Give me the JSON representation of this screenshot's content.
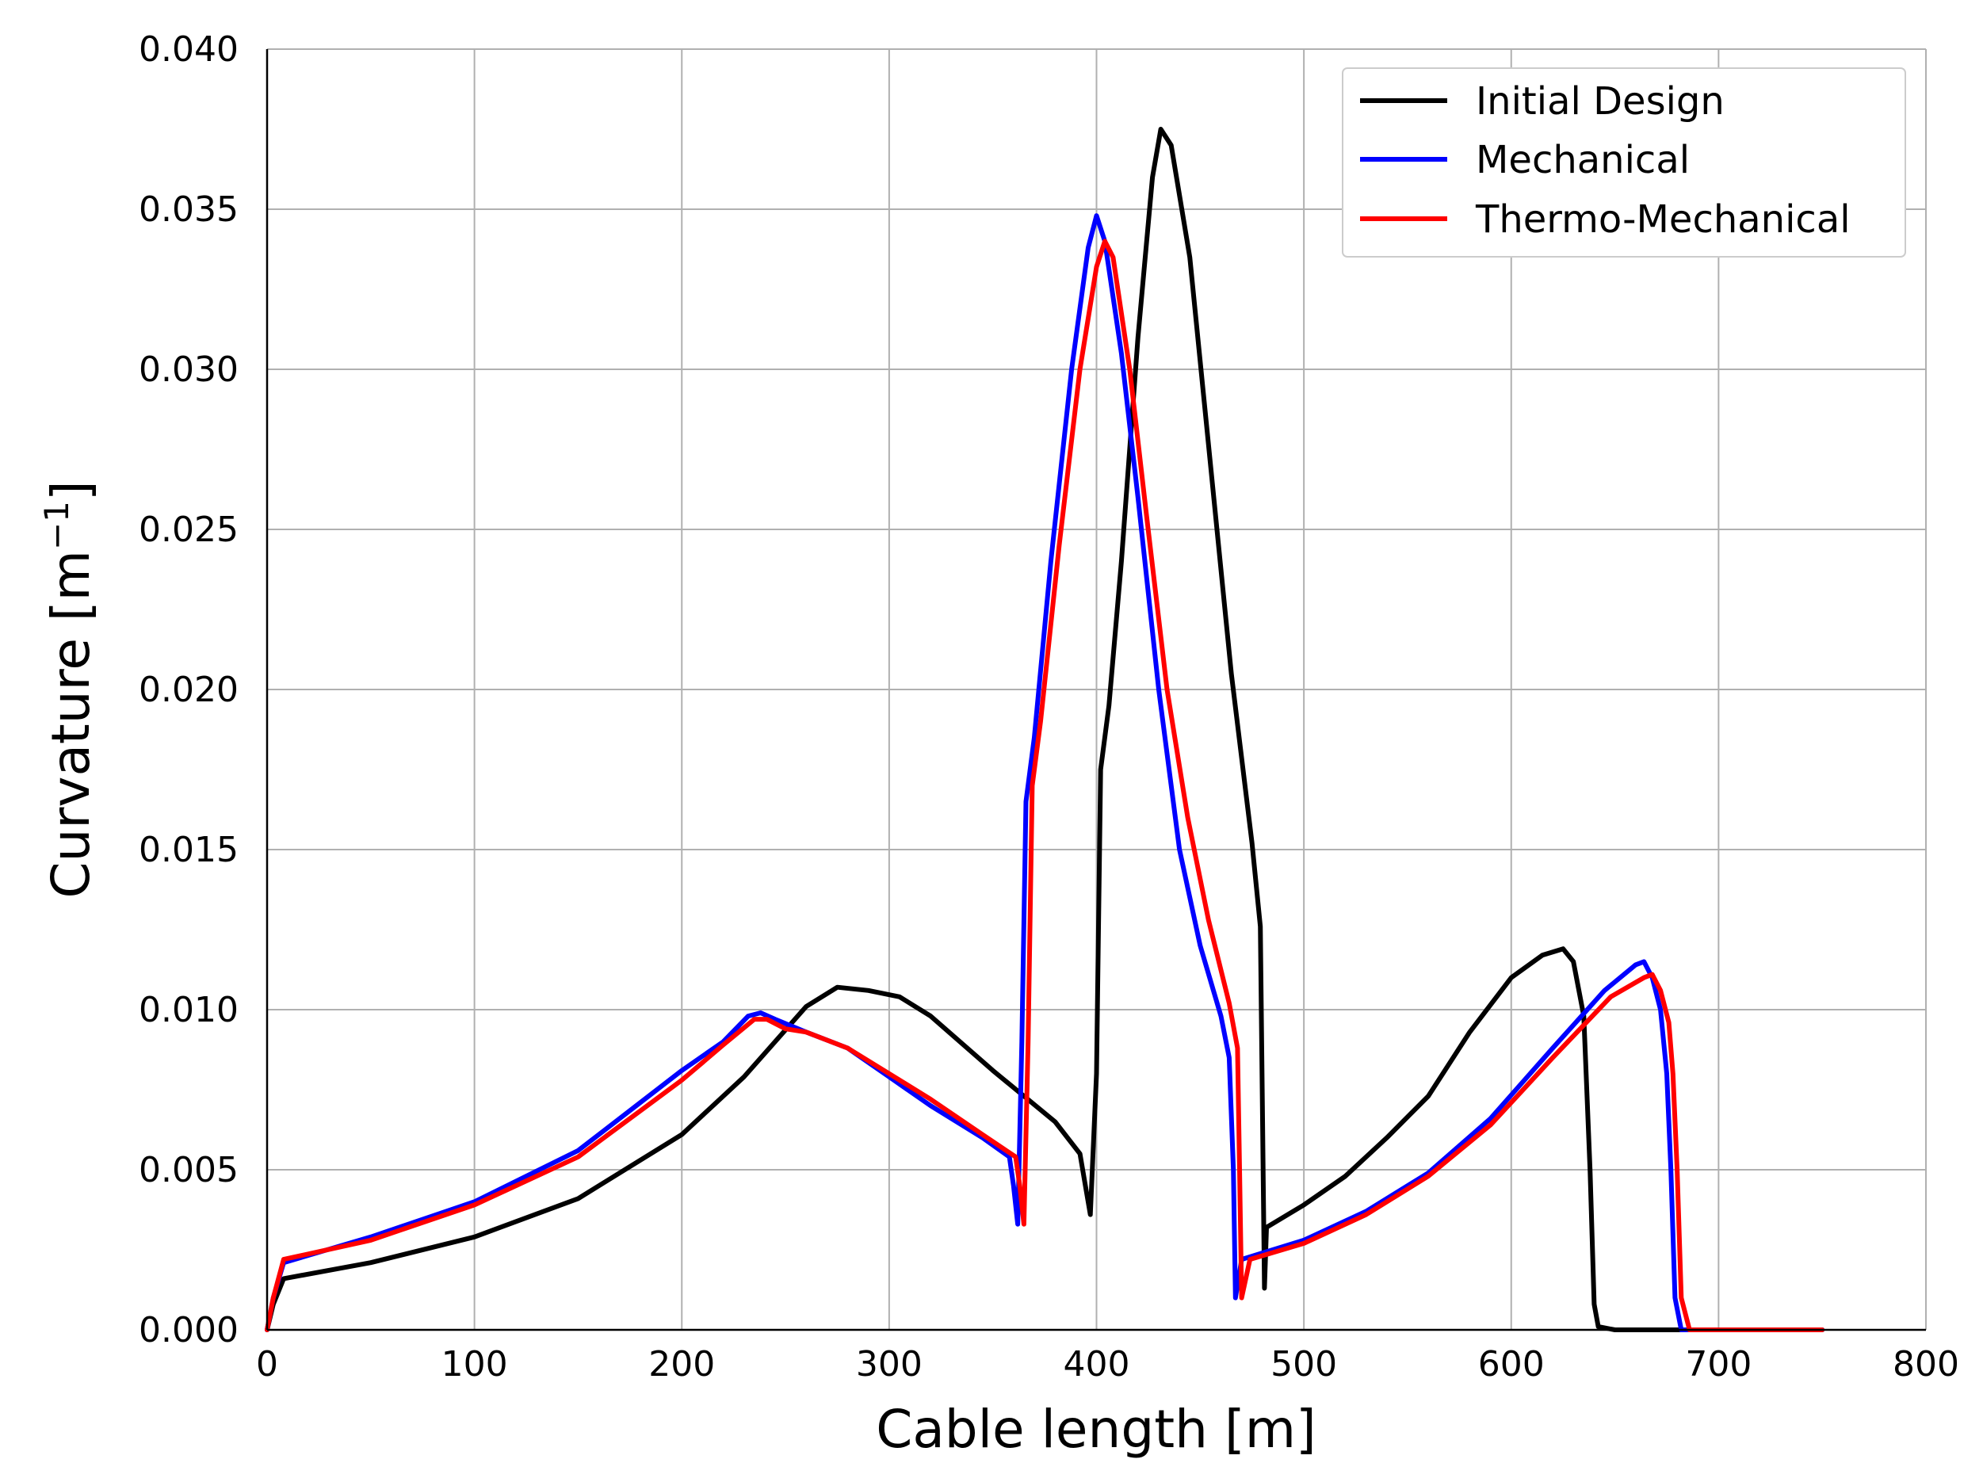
{
  "chart_data": {
    "type": "line",
    "xlabel": "Cable length [m]",
    "ylabel_base": "Curvature [m",
    "ylabel_sup": "−1",
    "ylabel_close": "]",
    "xlim": [
      0,
      800
    ],
    "ylim": [
      0,
      0.04
    ],
    "xticks": [
      0,
      100,
      200,
      300,
      400,
      500,
      600,
      700,
      800
    ],
    "xtick_labels": [
      "0",
      "100",
      "200",
      "300",
      "400",
      "500",
      "600",
      "700",
      "800"
    ],
    "yticks": [
      0,
      0.005,
      0.01,
      0.015,
      0.02,
      0.025,
      0.03,
      0.035,
      0.04
    ],
    "ytick_labels": [
      "0.000",
      "0.005",
      "0.010",
      "0.015",
      "0.020",
      "0.025",
      "0.030",
      "0.035",
      "0.040"
    ],
    "grid": true,
    "legend_position": "top-right",
    "series": [
      {
        "name": "Initial Design",
        "color": "#000000",
        "points": [
          [
            0,
            0
          ],
          [
            3,
            0.0008
          ],
          [
            8,
            0.0016
          ],
          [
            50,
            0.0021
          ],
          [
            100,
            0.0029
          ],
          [
            150,
            0.0041
          ],
          [
            200,
            0.0061
          ],
          [
            230,
            0.0079
          ],
          [
            260,
            0.0101
          ],
          [
            275,
            0.0107
          ],
          [
            290,
            0.0106
          ],
          [
            305,
            0.0104
          ],
          [
            320,
            0.0098
          ],
          [
            350,
            0.0081
          ],
          [
            380,
            0.0065
          ],
          [
            392,
            0.0055
          ],
          [
            397,
            0.0036
          ],
          [
            400,
            0.008
          ],
          [
            402,
            0.0175
          ],
          [
            406,
            0.0195
          ],
          [
            412,
            0.024
          ],
          [
            420,
            0.031
          ],
          [
            427,
            0.036
          ],
          [
            431,
            0.0375
          ],
          [
            436,
            0.037
          ],
          [
            445,
            0.0335
          ],
          [
            455,
            0.027
          ],
          [
            465,
            0.0205
          ],
          [
            475,
            0.0152
          ],
          [
            479,
            0.0126
          ],
          [
            480,
            0.007
          ],
          [
            481,
            0.0013
          ],
          [
            482,
            0.0032
          ],
          [
            500,
            0.0039
          ],
          [
            520,
            0.0048
          ],
          [
            540,
            0.006
          ],
          [
            560,
            0.0073
          ],
          [
            580,
            0.0093
          ],
          [
            600,
            0.011
          ],
          [
            615,
            0.0117
          ],
          [
            625,
            0.0119
          ],
          [
            630,
            0.0115
          ],
          [
            635,
            0.0098
          ],
          [
            638,
            0.005
          ],
          [
            640,
            0.0008
          ],
          [
            642,
            0.0001
          ],
          [
            650,
            0
          ],
          [
            750,
            0
          ]
        ]
      },
      {
        "name": "Mechanical",
        "color": "#0000ff",
        "points": [
          [
            0,
            0
          ],
          [
            3,
            0.001
          ],
          [
            8,
            0.0021
          ],
          [
            50,
            0.0029
          ],
          [
            100,
            0.004
          ],
          [
            150,
            0.0056
          ],
          [
            200,
            0.0081
          ],
          [
            220,
            0.009
          ],
          [
            232,
            0.0098
          ],
          [
            238,
            0.0099
          ],
          [
            245,
            0.0097
          ],
          [
            260,
            0.0093
          ],
          [
            280,
            0.0088
          ],
          [
            300,
            0.0079
          ],
          [
            320,
            0.007
          ],
          [
            345,
            0.006
          ],
          [
            358,
            0.0054
          ],
          [
            360,
            0.0045
          ],
          [
            362,
            0.0033
          ],
          [
            364,
            0.009
          ],
          [
            366,
            0.0165
          ],
          [
            370,
            0.0185
          ],
          [
            378,
            0.024
          ],
          [
            388,
            0.03
          ],
          [
            396,
            0.0338
          ],
          [
            400,
            0.0348
          ],
          [
            404,
            0.034
          ],
          [
            412,
            0.0305
          ],
          [
            420,
            0.026
          ],
          [
            430,
            0.02
          ],
          [
            440,
            0.015
          ],
          [
            450,
            0.012
          ],
          [
            460,
            0.0098
          ],
          [
            464,
            0.0085
          ],
          [
            466,
            0.005
          ],
          [
            467,
            0.001
          ],
          [
            470,
            0.0022
          ],
          [
            500,
            0.0028
          ],
          [
            530,
            0.0037
          ],
          [
            560,
            0.0049
          ],
          [
            590,
            0.0066
          ],
          [
            620,
            0.0088
          ],
          [
            645,
            0.0106
          ],
          [
            660,
            0.0114
          ],
          [
            664,
            0.0115
          ],
          [
            668,
            0.011
          ],
          [
            672,
            0.01
          ],
          [
            675,
            0.008
          ],
          [
            677,
            0.005
          ],
          [
            679,
            0.001
          ],
          [
            682,
            0
          ],
          [
            750,
            0
          ]
        ]
      },
      {
        "name": "Thermo-Mechanical",
        "color": "#ff0000",
        "points": [
          [
            0,
            0
          ],
          [
            3,
            0.001
          ],
          [
            8,
            0.0022
          ],
          [
            50,
            0.0028
          ],
          [
            100,
            0.0039
          ],
          [
            150,
            0.0054
          ],
          [
            200,
            0.0078
          ],
          [
            220,
            0.0089
          ],
          [
            235,
            0.0097
          ],
          [
            241,
            0.0097
          ],
          [
            250,
            0.0094
          ],
          [
            260,
            0.0093
          ],
          [
            280,
            0.0088
          ],
          [
            300,
            0.008
          ],
          [
            320,
            0.0072
          ],
          [
            345,
            0.0061
          ],
          [
            361,
            0.0054
          ],
          [
            363,
            0.0045
          ],
          [
            365,
            0.0033
          ],
          [
            367,
            0.009
          ],
          [
            369,
            0.017
          ],
          [
            373,
            0.019
          ],
          [
            382,
            0.0245
          ],
          [
            392,
            0.03
          ],
          [
            400,
            0.0332
          ],
          [
            404,
            0.034
          ],
          [
            408,
            0.0335
          ],
          [
            416,
            0.03
          ],
          [
            424,
            0.0255
          ],
          [
            434,
            0.02
          ],
          [
            444,
            0.016
          ],
          [
            454,
            0.0128
          ],
          [
            464,
            0.0102
          ],
          [
            468,
            0.0088
          ],
          [
            469,
            0.005
          ],
          [
            470,
            0.001
          ],
          [
            474,
            0.0022
          ],
          [
            500,
            0.0027
          ],
          [
            530,
            0.0036
          ],
          [
            560,
            0.0048
          ],
          [
            590,
            0.0064
          ],
          [
            620,
            0.0085
          ],
          [
            648,
            0.0104
          ],
          [
            664,
            0.011
          ],
          [
            668,
            0.0111
          ],
          [
            672,
            0.0106
          ],
          [
            676,
            0.0096
          ],
          [
            678,
            0.008
          ],
          [
            680,
            0.005
          ],
          [
            682,
            0.001
          ],
          [
            686,
            0
          ],
          [
            750,
            0
          ]
        ]
      }
    ]
  }
}
